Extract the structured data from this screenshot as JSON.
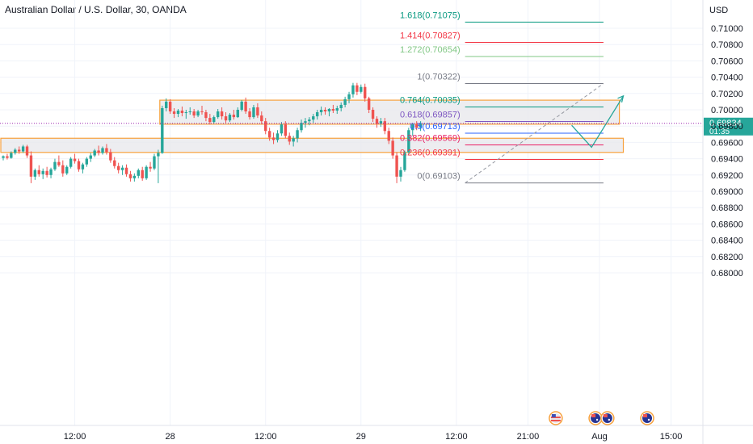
{
  "header": {
    "title": "Australian Dollar / U.S. Dollar, 30, OANDA"
  },
  "colors": {
    "up": "#26a69a",
    "down": "#ef5350",
    "zone_border": "#f7a13c",
    "zone_fill": "#e8e8ec",
    "price_label_bg": "#26a69a",
    "fib_1618": "#089981",
    "fib_1414": "#f23645",
    "fib_1272": "#81c784",
    "fib_1": "#787b86",
    "fib_0764": "#089981",
    "fib_0618": "#7e57c2",
    "fib_05": "#2962ff",
    "fib_0382": "#e91e63",
    "fib_0236": "#f23645",
    "fib_0": "#787b86",
    "projection": "#26a69a"
  },
  "chart_data": {
    "type": "candlestick",
    "title": "Australian Dollar / U.S. Dollar, 30, OANDA",
    "y_axis_unit": "USD",
    "ylim": [
      0.68,
      0.712
    ],
    "y_ticks": [
      "0.71000",
      "0.70800",
      "0.70600",
      "0.70400",
      "0.70200",
      "0.70000",
      "0.69800",
      "0.69600",
      "0.69400",
      "0.69200",
      "0.69000",
      "0.68800",
      "0.68600",
      "0.68400",
      "0.68200",
      "0.68000"
    ],
    "x_ticks": [
      {
        "label": "12:00",
        "bar": 18
      },
      {
        "label": "28",
        "bar": 42
      },
      {
        "label": "12:00",
        "bar": 66
      },
      {
        "label": "29",
        "bar": 90
      },
      {
        "label": "12:00",
        "bar": 114
      },
      {
        "label": "21:00",
        "bar": 132
      },
      {
        "label": "Aug",
        "bar": 150
      },
      {
        "label": "15:00",
        "bar": 168
      }
    ],
    "current_price": {
      "value": "0.69834",
      "countdown": "01:35"
    },
    "candles": [
      [
        0.6941,
        0.6944,
        0.6938,
        0.6943
      ],
      [
        0.6943,
        0.6946,
        0.6939,
        0.6941
      ],
      [
        0.6941,
        0.6949,
        0.694,
        0.6947
      ],
      [
        0.6947,
        0.6953,
        0.6945,
        0.6951
      ],
      [
        0.6951,
        0.6955,
        0.6946,
        0.6949
      ],
      [
        0.6949,
        0.6957,
        0.6947,
        0.6955
      ],
      [
        0.6955,
        0.6957,
        0.6941,
        0.6944
      ],
      [
        0.6944,
        0.6949,
        0.691,
        0.6918
      ],
      [
        0.6918,
        0.6928,
        0.6914,
        0.6926
      ],
      [
        0.6926,
        0.6932,
        0.6918,
        0.6921
      ],
      [
        0.6921,
        0.6928,
        0.6915,
        0.6925
      ],
      [
        0.6925,
        0.693,
        0.6917,
        0.692
      ],
      [
        0.692,
        0.6929,
        0.6916,
        0.6927
      ],
      [
        0.6927,
        0.694,
        0.6925,
        0.6936
      ],
      [
        0.6936,
        0.6944,
        0.693,
        0.6932
      ],
      [
        0.6932,
        0.6938,
        0.6918,
        0.6922
      ],
      [
        0.6922,
        0.6932,
        0.692,
        0.693
      ],
      [
        0.693,
        0.6942,
        0.6928,
        0.694
      ],
      [
        0.694,
        0.6946,
        0.6934,
        0.6937
      ],
      [
        0.6937,
        0.694,
        0.6924,
        0.6927
      ],
      [
        0.6927,
        0.6935,
        0.6922,
        0.6933
      ],
      [
        0.6933,
        0.6942,
        0.693,
        0.694
      ],
      [
        0.694,
        0.6947,
        0.6936,
        0.6944
      ],
      [
        0.6944,
        0.6952,
        0.6942,
        0.695
      ],
      [
        0.695,
        0.6956,
        0.6944,
        0.6947
      ],
      [
        0.6947,
        0.6955,
        0.6945,
        0.6953
      ],
      [
        0.6953,
        0.6958,
        0.6945,
        0.6948
      ],
      [
        0.6948,
        0.6952,
        0.6935,
        0.6938
      ],
      [
        0.6938,
        0.6942,
        0.6928,
        0.6931
      ],
      [
        0.6931,
        0.6935,
        0.6922,
        0.6926
      ],
      [
        0.6926,
        0.6932,
        0.692,
        0.6929
      ],
      [
        0.6929,
        0.6933,
        0.6918,
        0.6921
      ],
      [
        0.6921,
        0.6925,
        0.6912,
        0.6916
      ],
      [
        0.6916,
        0.6922,
        0.6912,
        0.6919
      ],
      [
        0.6919,
        0.6928,
        0.6916,
        0.6926
      ],
      [
        0.6926,
        0.693,
        0.6913,
        0.6916
      ],
      [
        0.6916,
        0.6932,
        0.6914,
        0.693
      ],
      [
        0.693,
        0.6936,
        0.6924,
        0.6928
      ],
      [
        0.6928,
        0.6946,
        0.6926,
        0.6943
      ],
      [
        0.6943,
        0.6951,
        0.691,
        0.6947
      ],
      [
        0.6947,
        0.7005,
        0.6946,
        0.7002
      ],
      [
        0.7002,
        0.7014,
        0.6998,
        0.701
      ],
      [
        0.701,
        0.7013,
        0.6995,
        0.6998
      ],
      [
        0.6998,
        0.7002,
        0.699,
        0.6995
      ],
      [
        0.6995,
        0.7001,
        0.6991,
        0.6999
      ],
      [
        0.6999,
        0.7004,
        0.6992,
        0.6996
      ],
      [
        0.6996,
        0.7,
        0.6989,
        0.6997
      ],
      [
        0.6997,
        0.7003,
        0.6994,
        0.6998
      ],
      [
        0.6998,
        0.7001,
        0.699,
        0.6993
      ],
      [
        0.6993,
        0.7,
        0.6991,
        0.6998
      ],
      [
        0.6998,
        0.7005,
        0.6994,
        0.6997
      ],
      [
        0.6997,
        0.7,
        0.6986,
        0.699
      ],
      [
        0.699,
        0.6995,
        0.6982,
        0.6985
      ],
      [
        0.6985,
        0.6993,
        0.6983,
        0.6991
      ],
      [
        0.6991,
        0.7001,
        0.6989,
        0.6998
      ],
      [
        0.6998,
        0.7003,
        0.6988,
        0.6992
      ],
      [
        0.6992,
        0.6997,
        0.6984,
        0.6987
      ],
      [
        0.6987,
        0.6996,
        0.6985,
        0.6994
      ],
      [
        0.6994,
        0.7,
        0.6988,
        0.6991
      ],
      [
        0.6991,
        0.7003,
        0.699,
        0.7
      ],
      [
        0.7,
        0.7012,
        0.6998,
        0.701
      ],
      [
        0.701,
        0.7015,
        0.6995,
        0.6998
      ],
      [
        0.6998,
        0.7002,
        0.6988,
        0.6991
      ],
      [
        0.6991,
        0.7006,
        0.6989,
        0.7003
      ],
      [
        0.7003,
        0.7008,
        0.699,
        0.6993
      ],
      [
        0.6993,
        0.6998,
        0.6982,
        0.6986
      ],
      [
        0.6986,
        0.699,
        0.697,
        0.6974
      ],
      [
        0.6974,
        0.6978,
        0.6962,
        0.6966
      ],
      [
        0.6966,
        0.6972,
        0.6958,
        0.6963
      ],
      [
        0.6963,
        0.6975,
        0.696,
        0.6971
      ],
      [
        0.6971,
        0.6985,
        0.6968,
        0.6982
      ],
      [
        0.6982,
        0.6986,
        0.6965,
        0.6968
      ],
      [
        0.6968,
        0.6972,
        0.6957,
        0.6961
      ],
      [
        0.6961,
        0.6968,
        0.6955,
        0.6965
      ],
      [
        0.6965,
        0.6978,
        0.696,
        0.6975
      ],
      [
        0.6975,
        0.6988,
        0.6972,
        0.6984
      ],
      [
        0.6984,
        0.699,
        0.6978,
        0.6986
      ],
      [
        0.6986,
        0.6991,
        0.6981,
        0.6988
      ],
      [
        0.6988,
        0.6995,
        0.6984,
        0.6992
      ],
      [
        0.6992,
        0.7,
        0.6988,
        0.6997
      ],
      [
        0.6997,
        0.7004,
        0.6993,
        0.7
      ],
      [
        0.7,
        0.7003,
        0.6994,
        0.6998
      ],
      [
        0.6998,
        0.7002,
        0.6992,
        0.7001
      ],
      [
        0.7001,
        0.7006,
        0.6996,
        0.6999
      ],
      [
        0.6999,
        0.7005,
        0.6995,
        0.7002
      ],
      [
        0.7002,
        0.7009,
        0.6998,
        0.7006
      ],
      [
        0.7006,
        0.7016,
        0.7003,
        0.7013
      ],
      [
        0.7013,
        0.7022,
        0.7008,
        0.7019
      ],
      [
        0.7019,
        0.7033,
        0.7015,
        0.703
      ],
      [
        0.703,
        0.7033,
        0.7018,
        0.7022
      ],
      [
        0.7022,
        0.7031,
        0.702,
        0.7028
      ],
      [
        0.7028,
        0.7032,
        0.701,
        0.7014
      ],
      [
        0.7014,
        0.7016,
        0.6996,
        0.7
      ],
      [
        0.7,
        0.7003,
        0.6985,
        0.6989
      ],
      [
        0.6989,
        0.6992,
        0.6978,
        0.6983
      ],
      [
        0.6983,
        0.699,
        0.6979,
        0.6986
      ],
      [
        0.6986,
        0.699,
        0.697,
        0.6974
      ],
      [
        0.6974,
        0.6978,
        0.6958,
        0.6962
      ],
      [
        0.6962,
        0.6966,
        0.694,
        0.6944
      ],
      [
        0.6944,
        0.6948,
        0.691,
        0.6918
      ],
      [
        0.6918,
        0.693,
        0.6912,
        0.6926
      ],
      [
        0.6926,
        0.695,
        0.6924,
        0.6948
      ],
      [
        0.6948,
        0.6978,
        0.6946,
        0.6975
      ],
      [
        0.6975,
        0.6984,
        0.6968,
        0.6982
      ],
      [
        0.6982,
        0.6986,
        0.6975,
        0.6978
      ],
      [
        0.6978,
        0.6986,
        0.6974,
        0.6983
      ]
    ],
    "zones": [
      {
        "bar_start": 40,
        "bar_end": 155,
        "top": 0.70118,
        "bottom": 0.69823
      },
      {
        "bar_start": 0,
        "bar_end": 156,
        "top": 0.69651,
        "bottom": 0.69477
      }
    ],
    "fib": {
      "bar_start": 117,
      "bar_end": 151,
      "levels": [
        {
          "ratio": "1.618",
          "price": "0.71075",
          "text": "1.618(0.71075)",
          "color_key": "fib_1618"
        },
        {
          "ratio": "1.414",
          "price": "0.70827",
          "text": "1.414(0.70827)",
          "color_key": "fib_1414"
        },
        {
          "ratio": "1.272",
          "price": "0.70654",
          "text": "1.272(0.70654)",
          "color_key": "fib_1272"
        },
        {
          "ratio": "1",
          "price": "0.70322",
          "text": "1(0.70322)",
          "color_key": "fib_1"
        },
        {
          "ratio": "0.764",
          "price": "0.70035",
          "text": "0.764(0.70035)",
          "color_key": "fib_0764"
        },
        {
          "ratio": "0.618",
          "price": "0.69857",
          "text": "0.618(0.69857)",
          "color_key": "fib_0618"
        },
        {
          "ratio": "0.5",
          "price": "0.69713",
          "text": "0.5(0.69713)",
          "color_key": "fib_05"
        },
        {
          "ratio": "0.382",
          "price": "0.69569",
          "text": "0.382(0.69569)",
          "color_key": "fib_0382"
        },
        {
          "ratio": "0.236",
          "price": "0.69391",
          "text": "0.236(0.69391)",
          "color_key": "fib_0236"
        },
        {
          "ratio": "0",
          "price": "0.69103",
          "text": "0(0.69103)",
          "color_key": "fib_0"
        }
      ],
      "trend_from": {
        "bar": 117,
        "price": 0.69103
      },
      "trend_to": {
        "bar": 151,
        "price": 0.70322
      }
    },
    "projection": [
      {
        "bar": 143,
        "price": 0.6981
      },
      {
        "bar": 148,
        "price": 0.6954
      },
      {
        "bar": 156,
        "price": 0.7017
      }
    ],
    "event_icons": [
      {
        "name": "us-flag-icon",
        "bar": 139
      },
      {
        "name": "au-flag-icon",
        "bar": 149
      },
      {
        "name": "au-flag-icon",
        "bar": 152
      },
      {
        "name": "au-flag-icon",
        "bar": 162
      }
    ]
  }
}
